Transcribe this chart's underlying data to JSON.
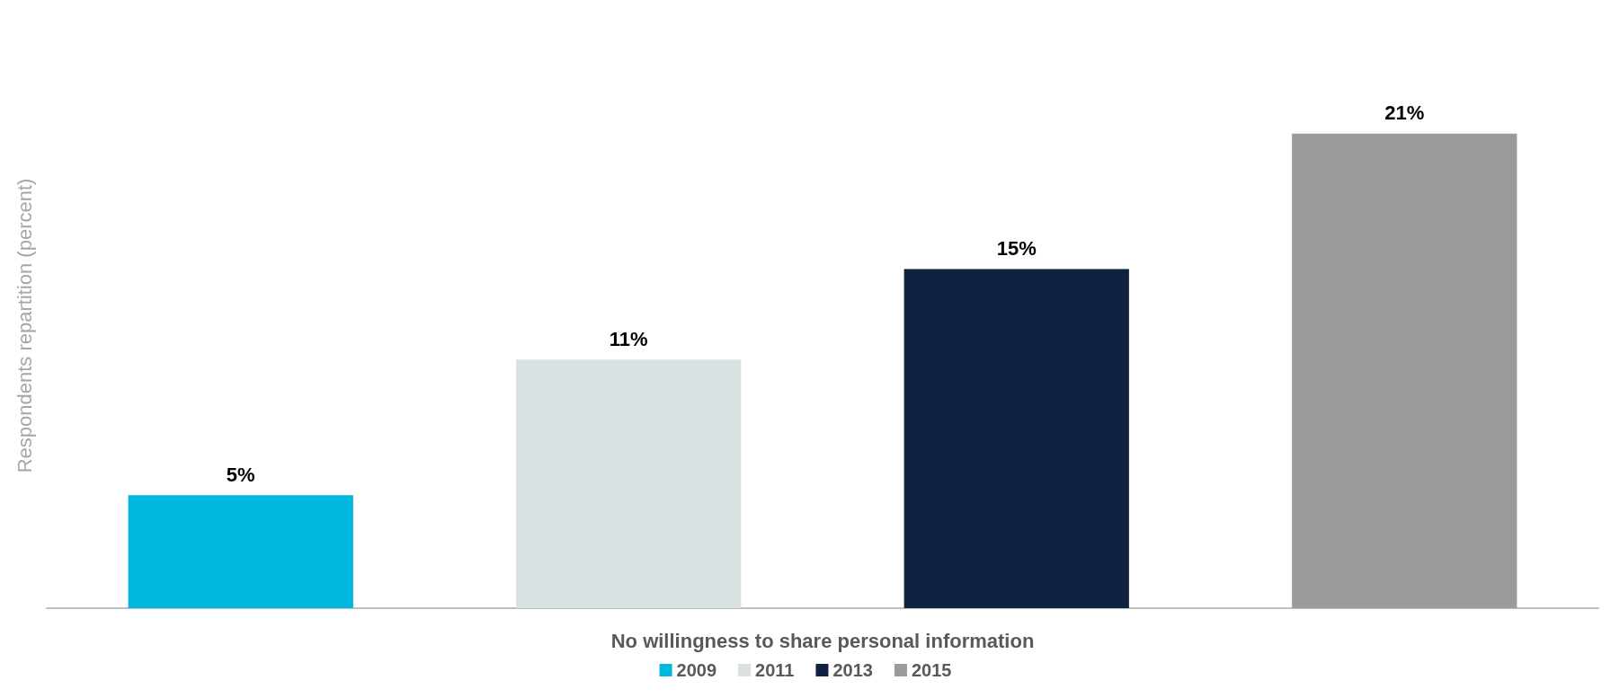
{
  "chart_data": {
    "type": "bar",
    "ylabel": "Respondents repartition (percent)",
    "xlabel": "No willingness to share personal information",
    "categories": [
      null,
      null,
      null,
      null
    ],
    "stacked": true,
    "series": [
      {
        "name": "2009",
        "color": "#00b8dd",
        "values": [
          5,
          null,
          null,
          null
        ],
        "value_labels": [
          "5%",
          null,
          null,
          null
        ]
      },
      {
        "name": "2011",
        "color": "#d9e1e3",
        "values": [
          null,
          11,
          null,
          null
        ],
        "value_labels": [
          null,
          "11%",
          null,
          null
        ]
      },
      {
        "name": "2013",
        "color": "#0f2340",
        "values": [
          null,
          null,
          15,
          null
        ],
        "value_labels": [
          null,
          null,
          "15%",
          null
        ]
      },
      {
        "name": "2015",
        "color": "#9b9b9b",
        "values": [
          null,
          null,
          null,
          21
        ],
        "value_labels": [
          null,
          null,
          null,
          "21%"
        ]
      }
    ],
    "grid": false,
    "legend": "bottom"
  }
}
